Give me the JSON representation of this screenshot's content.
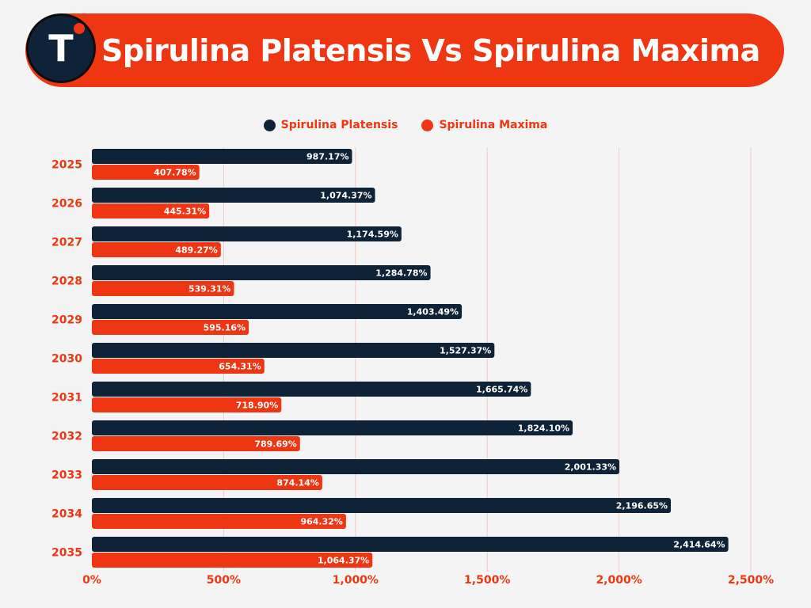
{
  "header": {
    "logo_letter": "T",
    "title": "Spirulina Platensis Vs Spirulina Maxima"
  },
  "colors": {
    "accent": "#ee3612",
    "dark": "#0f2338",
    "background": "#f4f4f4"
  },
  "chart_data": {
    "type": "bar",
    "orientation": "horizontal",
    "categories": [
      "2025",
      "2026",
      "2027",
      "2028",
      "2029",
      "2030",
      "2031",
      "2032",
      "2033",
      "2034",
      "2035"
    ],
    "series": [
      {
        "name": "Spirulina Platensis",
        "color": "#0f2338",
        "values": [
          987.17,
          1074.37,
          1174.59,
          1284.78,
          1403.49,
          1527.37,
          1665.74,
          1824.1,
          2001.33,
          2196.65,
          2414.64
        ],
        "labels": [
          "987.17%",
          "1,074.37%",
          "1,174.59%",
          "1,284.78%",
          "1,403.49%",
          "1,527.37%",
          "1,665.74%",
          "1,824.10%",
          "2,001.33%",
          "2,196.65%",
          "2,414.64%"
        ]
      },
      {
        "name": "Spirulina Maxima",
        "color": "#ee3612",
        "values": [
          407.78,
          445.31,
          489.27,
          539.31,
          595.16,
          654.31,
          718.9,
          789.69,
          874.14,
          964.32,
          1064.37
        ],
        "labels": [
          "407.78%",
          "445.31%",
          "489.27%",
          "539.31%",
          "595.16%",
          "654.31%",
          "718.90%",
          "789.69%",
          "874.14%",
          "964.32%",
          "1,064.37%"
        ]
      }
    ],
    "xlim": [
      0,
      2500
    ],
    "xticks": [
      0,
      500,
      1000,
      1500,
      2000,
      2500
    ],
    "xtick_labels": [
      "0%",
      "500%",
      "1,000%",
      "1,500%",
      "2,000%",
      "2,500%"
    ],
    "grid": true,
    "legend_position": "top-center"
  }
}
